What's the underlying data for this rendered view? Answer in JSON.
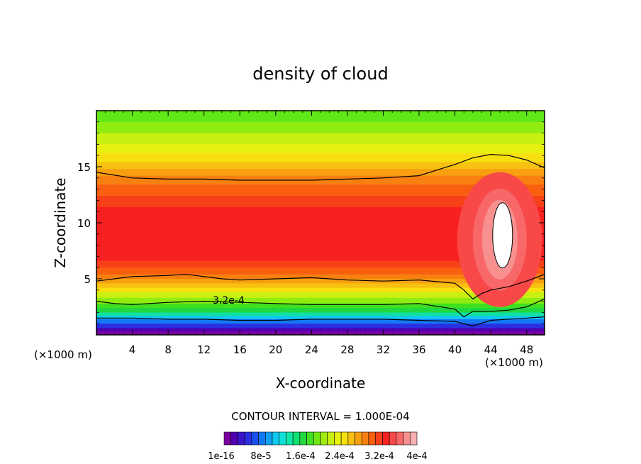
{
  "chart_data": {
    "type": "heatmap",
    "title": "density of cloud",
    "xlabel": "X-coordinate",
    "ylabel": "Z-coordinate",
    "x_unit": "(×1000 m)",
    "y_unit": "",
    "xlim": [
      0,
      50
    ],
    "ylim": [
      0,
      20
    ],
    "x_ticks": [
      4,
      8,
      12,
      16,
      20,
      24,
      28,
      32,
      36,
      40,
      44,
      48
    ],
    "y_ticks": [
      5,
      10,
      15
    ],
    "contour_interval_label": "CONTOUR INTERVAL = 1.000E-04",
    "contour_annotation": "3.2e-4",
    "colorbar": {
      "tick_labels": [
        "1e-16",
        "8e-5",
        "1.6e-4",
        "2.4e-4",
        "3.2e-4",
        "4e-4"
      ],
      "colors": [
        "#7a00a0",
        "#5000b0",
        "#3a18c8",
        "#2a30e0",
        "#1a50f0",
        "#1478f5",
        "#10a0f5",
        "#10c8f0",
        "#10e0d8",
        "#10e8a8",
        "#10e070",
        "#20d840",
        "#40e020",
        "#70e810",
        "#a0ec10",
        "#c8f010",
        "#e8f010",
        "#f8e010",
        "#f8c010",
        "#f8a010",
        "#f88010",
        "#f86010",
        "#f84018",
        "#f82020",
        "#f84848",
        "#f86868",
        "#f89090",
        "#f8b0b0"
      ]
    },
    "isolines": [
      {
        "level": "high",
        "x": [
          0,
          4,
          8,
          12,
          16,
          20,
          24,
          28,
          32,
          36,
          40,
          42,
          44,
          46,
          48,
          50
        ],
        "z": [
          14.5,
          14.0,
          13.9,
          13.9,
          13.8,
          13.8,
          13.8,
          13.9,
          14.0,
          14.2,
          15.2,
          15.8,
          16.1,
          16.0,
          15.6,
          14.9
        ]
      },
      {
        "level": "mid",
        "x": [
          0,
          2,
          4,
          8,
          10,
          12,
          14,
          16,
          20,
          24,
          28,
          32,
          36,
          40,
          41,
          42,
          43,
          44,
          46,
          48,
          50
        ],
        "z": [
          4.8,
          5.0,
          5.2,
          5.3,
          5.4,
          5.2,
          5.0,
          4.9,
          5.0,
          5.1,
          4.9,
          4.8,
          4.9,
          4.6,
          4.0,
          3.2,
          3.7,
          4.0,
          4.3,
          4.8,
          5.4
        ]
      },
      {
        "level": "low",
        "x": [
          0,
          2,
          4,
          8,
          12,
          16,
          20,
          24,
          28,
          32,
          36,
          40,
          41,
          42,
          44,
          46,
          48,
          50
        ],
        "z": [
          3.0,
          2.8,
          2.7,
          2.9,
          3.0,
          2.9,
          2.8,
          2.7,
          2.7,
          2.7,
          2.8,
          2.3,
          1.6,
          2.1,
          2.1,
          2.2,
          2.5,
          3.2
        ]
      },
      {
        "level": "base",
        "x": [
          0,
          4,
          8,
          12,
          16,
          20,
          24,
          28,
          32,
          36,
          40,
          42,
          44,
          48,
          50
        ],
        "z": [
          1.5,
          1.5,
          1.4,
          1.4,
          1.3,
          1.3,
          1.4,
          1.4,
          1.4,
          1.3,
          1.2,
          0.8,
          1.3,
          1.5,
          1.6
        ]
      }
    ],
    "bands": [
      {
        "top": 20.0,
        "color": "#60e818"
      },
      {
        "top": 19.0,
        "color": "#90ec10"
      },
      {
        "top": 18.0,
        "color": "#c8f010"
      },
      {
        "top": 17.0,
        "color": "#e8f010"
      },
      {
        "top": 16.2,
        "color": "#f8e010"
      },
      {
        "top": 15.4,
        "color": "#f8c010"
      },
      {
        "top": 14.8,
        "color": "#f8a010"
      },
      {
        "top": 14.2,
        "color": "#f88010"
      },
      {
        "top": 13.4,
        "color": "#f86010"
      },
      {
        "top": 12.4,
        "color": "#f84018"
      },
      {
        "top": 11.4,
        "color": "#f82020"
      },
      {
        "top": 6.6,
        "color": "#f84018"
      },
      {
        "top": 6.0,
        "color": "#f86010"
      },
      {
        "top": 5.4,
        "color": "#f88010"
      },
      {
        "top": 5.0,
        "color": "#f8a010"
      },
      {
        "top": 4.6,
        "color": "#f8c010"
      },
      {
        "top": 4.2,
        "color": "#f8e010"
      },
      {
        "top": 3.8,
        "color": "#c8f010"
      },
      {
        "top": 3.3,
        "color": "#90ec10"
      },
      {
        "top": 2.8,
        "color": "#40e020"
      },
      {
        "top": 2.4,
        "color": "#20d840"
      },
      {
        "top": 2.0,
        "color": "#10e0a0"
      },
      {
        "top": 1.7,
        "color": "#10c8f0"
      },
      {
        "top": 1.4,
        "color": "#1478f5"
      },
      {
        "top": 1.0,
        "color": "#2a30e0"
      },
      {
        "top": 0.6,
        "color": "#5000b0"
      },
      {
        "top": 0.3,
        "color": "#7a00a0"
      }
    ],
    "hotspot": {
      "x": 45,
      "z": 8.5,
      "label_values": [
        "#f84848",
        "#f86868",
        "#f89090",
        "#ffffff"
      ]
    }
  }
}
